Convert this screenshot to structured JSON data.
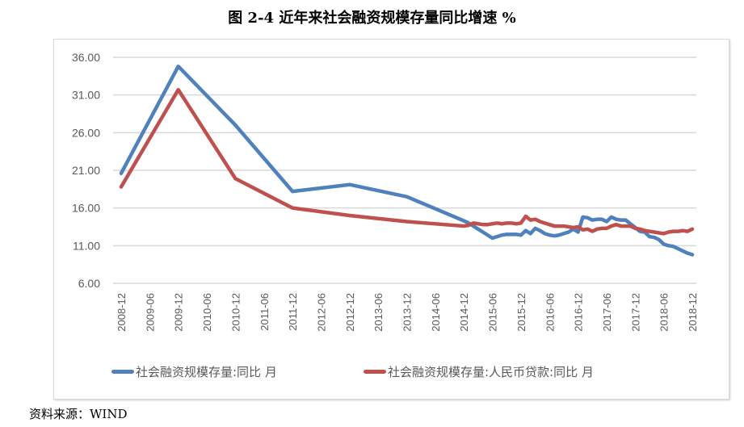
{
  "chart_data": {
    "type": "line",
    "title": "图 2-4 近年来社会融资规模存量同比增速 %",
    "ylim": [
      6,
      36
    ],
    "yticks": [
      "36.00",
      "31.00",
      "26.00",
      "21.00",
      "16.00",
      "11.00",
      "6.00"
    ],
    "xlim": [
      "2008-12",
      "2018-12"
    ],
    "xticks": [
      "2008-12",
      "2009-06",
      "2009-12",
      "2010-06",
      "2010-12",
      "2011-06",
      "2011-12",
      "2012-06",
      "2012-12",
      "2013-06",
      "2013-12",
      "2014-06",
      "2014-12",
      "2015-06",
      "2015-12",
      "2016-06",
      "2016-12",
      "2017-06",
      "2017-12",
      "2018-06",
      "2018-12"
    ],
    "grid": true,
    "legend_position": "bottom",
    "series": [
      {
        "name": "社会融资规模存量:同比 月",
        "color": "#4f81bd",
        "x": [
          "2008-12",
          "2009-12",
          "2010-12",
          "2011-12",
          "2012-12",
          "2013-12",
          "2014-12",
          "2015-01",
          "2015-02",
          "2015-03",
          "2015-04",
          "2015-05",
          "2015-06",
          "2015-07",
          "2015-08",
          "2015-09",
          "2015-10",
          "2015-11",
          "2015-12",
          "2016-01",
          "2016-02",
          "2016-03",
          "2016-04",
          "2016-05",
          "2016-06",
          "2016-07",
          "2016-08",
          "2016-09",
          "2016-10",
          "2016-11",
          "2016-12",
          "2017-01",
          "2017-02",
          "2017-03",
          "2017-04",
          "2017-05",
          "2017-06",
          "2017-07",
          "2017-08",
          "2017-09",
          "2017-10",
          "2017-11",
          "2017-12",
          "2018-01",
          "2018-02",
          "2018-03",
          "2018-04",
          "2018-05",
          "2018-06",
          "2018-07",
          "2018-08",
          "2018-09",
          "2018-10",
          "2018-11",
          "2018-12"
        ],
        "y": [
          20.6,
          34.8,
          27.0,
          18.2,
          19.1,
          17.5,
          14.3,
          14.0,
          13.6,
          13.2,
          12.8,
          12.4,
          12.0,
          12.2,
          12.4,
          12.5,
          12.5,
          12.5,
          12.4,
          13.0,
          12.6,
          13.3,
          13.0,
          12.6,
          12.4,
          12.3,
          12.4,
          12.6,
          12.8,
          13.2,
          12.8,
          14.8,
          14.7,
          14.4,
          14.5,
          14.5,
          14.2,
          14.8,
          14.5,
          14.4,
          14.4,
          13.9,
          13.4,
          12.9,
          12.8,
          12.2,
          12.1,
          11.8,
          11.2,
          11.0,
          10.9,
          10.6,
          10.3,
          10.0,
          9.8
        ]
      },
      {
        "name": "社会融资规模存量:人民币贷款:同比 月",
        "color": "#c0504d",
        "x": [
          "2008-12",
          "2009-12",
          "2010-12",
          "2011-12",
          "2012-12",
          "2013-12",
          "2014-12",
          "2015-01",
          "2015-02",
          "2015-03",
          "2015-04",
          "2015-05",
          "2015-06",
          "2015-07",
          "2015-08",
          "2015-09",
          "2015-10",
          "2015-11",
          "2015-12",
          "2016-01",
          "2016-02",
          "2016-03",
          "2016-04",
          "2016-05",
          "2016-06",
          "2016-07",
          "2016-08",
          "2016-09",
          "2016-10",
          "2016-11",
          "2016-12",
          "2017-01",
          "2017-02",
          "2017-03",
          "2017-04",
          "2017-05",
          "2017-06",
          "2017-07",
          "2017-08",
          "2017-09",
          "2017-10",
          "2017-11",
          "2017-12",
          "2018-01",
          "2018-02",
          "2018-03",
          "2018-04",
          "2018-05",
          "2018-06",
          "2018-07",
          "2018-08",
          "2018-09",
          "2018-10",
          "2018-11",
          "2018-12"
        ],
        "y": [
          18.8,
          31.7,
          19.9,
          16.0,
          15.0,
          14.2,
          13.6,
          13.7,
          14.0,
          13.9,
          13.8,
          13.8,
          13.9,
          14.0,
          13.9,
          14.0,
          14.0,
          13.9,
          14.0,
          14.9,
          14.4,
          14.5,
          14.2,
          14.0,
          13.8,
          13.6,
          13.6,
          13.6,
          13.5,
          13.4,
          13.5,
          13.1,
          13.2,
          12.9,
          13.2,
          13.3,
          13.3,
          13.6,
          13.8,
          13.6,
          13.6,
          13.6,
          13.3,
          13.2,
          13.0,
          12.9,
          12.8,
          12.7,
          12.6,
          12.8,
          12.9,
          12.9,
          13.0,
          12.9,
          13.2
        ]
      }
    ]
  },
  "source": "资料来源：WIND"
}
